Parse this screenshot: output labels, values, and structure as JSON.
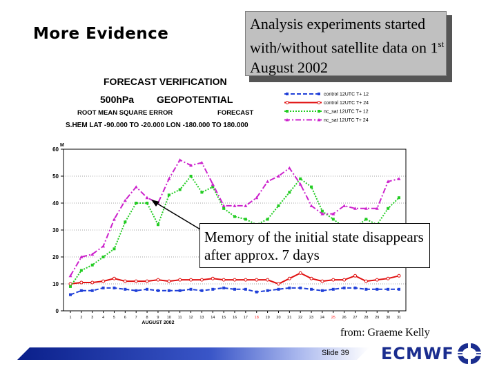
{
  "slide": {
    "title": "More Evidence",
    "note_text": "Analysis experiments started with/without satellite data on 1",
    "note_sup": "st",
    "note_tail": " August 2002",
    "callout": "Memory of the initial state disappears after approx. 7 days",
    "credit": "from: Graeme Kelly",
    "slide_number": "Slide 39",
    "brand": "ECMWF",
    "colors": {
      "brand": "#1a2d8f",
      "note_bg": "#c0c0c0"
    }
  },
  "chart_header": {
    "line1": "FORECAST VERIFICATION",
    "line2a": "500hPa",
    "line2b": "GEOPOTENTIAL",
    "line3a": "ROOT MEAN SQUARE ERROR",
    "line3b": "FORECAST",
    "line4": "S.HEM     LAT -90.000 TO -20.000  LON -180.000 TO  180.000"
  },
  "chart_data": {
    "type": "line",
    "ylabel": "M",
    "xlabel": "AUGUST 2002",
    "ylim": [
      0,
      60
    ],
    "yticks": [
      0,
      10,
      20,
      30,
      40,
      50,
      60
    ],
    "grid": true,
    "legend_position": "top-right",
    "x": [
      1,
      2,
      3,
      4,
      5,
      6,
      7,
      8,
      9,
      10,
      11,
      12,
      13,
      14,
      15,
      16,
      17,
      18,
      19,
      20,
      21,
      22,
      23,
      24,
      25,
      26,
      27,
      28,
      29,
      30,
      31
    ],
    "series": [
      {
        "name": "control 12UTC T+ 12",
        "color": "#1f3fd8",
        "dash": "6,3",
        "marker": "square",
        "values": [
          6,
          7.5,
          7.5,
          8.5,
          8.5,
          8,
          7.5,
          8,
          7.5,
          7.5,
          7.5,
          8,
          7.5,
          8,
          8.5,
          8,
          8,
          7,
          7.5,
          8,
          8.5,
          8.5,
          8,
          7.5,
          8,
          8.5,
          8.5,
          8,
          8,
          8,
          8
        ]
      },
      {
        "name": "control 12UTC T+ 24",
        "color": "#e01010",
        "dash": "",
        "marker": "circle",
        "values": [
          10,
          10.5,
          10.5,
          11,
          12,
          11,
          11,
          11,
          11.5,
          11,
          11.5,
          11.5,
          11.5,
          12,
          11.5,
          11.5,
          11.5,
          11.5,
          11.5,
          10,
          12,
          14,
          12,
          11,
          11.5,
          11.5,
          13,
          11,
          11.5,
          12,
          13
        ]
      },
      {
        "name": "nc_sat 12UTC T+ 12",
        "color": "#22cc22",
        "dash": "2,2",
        "marker": "square",
        "values": [
          9,
          15,
          17,
          20,
          23,
          33,
          40,
          40,
          32,
          43,
          45,
          50,
          44,
          46,
          38,
          35,
          34,
          32,
          34,
          39,
          44,
          49,
          46,
          37,
          34,
          31,
          31,
          34,
          32,
          38,
          42
        ]
      },
      {
        "name": "nc_sat 12UTC T+ 24",
        "color": "#cc22cc",
        "dash": "8,3,2,3",
        "marker": "triangle",
        "values": [
          13,
          20,
          21,
          24,
          34,
          41,
          46,
          42,
          40,
          49,
          56,
          54,
          55,
          47,
          39,
          39,
          39,
          42,
          48,
          50,
          53,
          47,
          39,
          36,
          36,
          39,
          38,
          38,
          38,
          48,
          49
        ]
      }
    ],
    "highlighted_x": [
      18,
      25
    ],
    "highlight_color": "#ff2020"
  }
}
